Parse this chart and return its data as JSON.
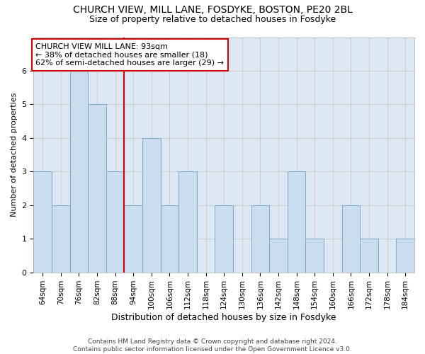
{
  "title_line1": "CHURCH VIEW, MILL LANE, FOSDYKE, BOSTON, PE20 2BL",
  "title_line2": "Size of property relative to detached houses in Fosdyke",
  "xlabel": "Distribution of detached houses by size in Fosdyke",
  "ylabel": "Number of detached properties",
  "categories": [
    "64sqm",
    "70sqm",
    "76sqm",
    "82sqm",
    "88sqm",
    "94sqm",
    "100sqm",
    "106sqm",
    "112sqm",
    "118sqm",
    "124sqm",
    "130sqm",
    "136sqm",
    "142sqm",
    "148sqm",
    "154sqm",
    "160sqm",
    "166sqm",
    "172sqm",
    "178sqm",
    "184sqm"
  ],
  "values": [
    3,
    2,
    6,
    5,
    3,
    2,
    4,
    2,
    3,
    0,
    2,
    0,
    2,
    1,
    3,
    1,
    0,
    2,
    1,
    0,
    1
  ],
  "bar_color": "#c9ddef",
  "bar_edge_color": "#7aaac8",
  "ref_line_index": 5,
  "ref_line_color": "#cc0000",
  "annotation_text": "CHURCH VIEW MILL LANE: 93sqm\n← 38% of detached houses are smaller (18)\n62% of semi-detached houses are larger (29) →",
  "annotation_box_color": "#ffffff",
  "annotation_box_edge_color": "#cc0000",
  "ylim": [
    0,
    7
  ],
  "yticks": [
    0,
    1,
    2,
    3,
    4,
    5,
    6
  ],
  "grid_color": "#cccccc",
  "bg_color": "#dce9f5",
  "fig_bg_color": "#ffffff",
  "footer_text": "Contains HM Land Registry data © Crown copyright and database right 2024.\nContains public sector information licensed under the Open Government Licence v3.0.",
  "title1_fontsize": 10,
  "title2_fontsize": 9,
  "xlabel_fontsize": 9,
  "ylabel_fontsize": 8,
  "tick_fontsize": 7.5,
  "annotation_fontsize": 8,
  "footer_fontsize": 6.5
}
